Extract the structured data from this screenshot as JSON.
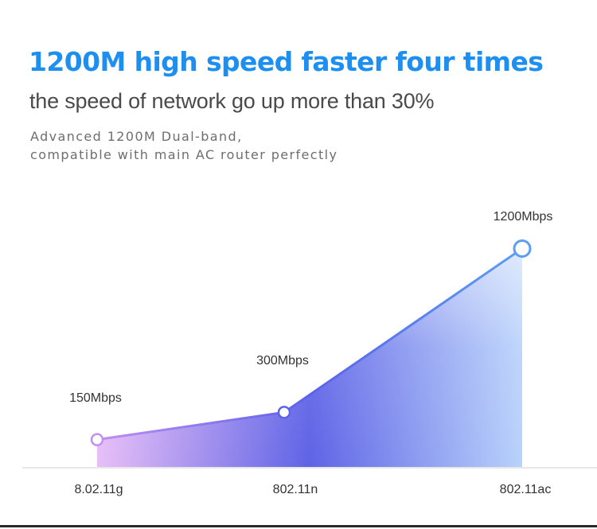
{
  "header": {
    "headline": "1200M high speed  faster four times",
    "subheadline": "the speed of network go up more than  30%",
    "description_line1": "Advanced 1200M Dual-band,",
    "description_line2": "compatible with main AC router perfectly"
  },
  "colors": {
    "headline": "#1d8ff0",
    "line_start": "#c18ff2",
    "line_mid": "#5a63ea",
    "line_end": "#5b9ef2",
    "area_start": "#e8bff7",
    "area_mid": "#5e63e6",
    "area_end": "#b9d2fb",
    "axis": "#cfcfcf"
  },
  "chart_data": {
    "type": "area",
    "title": "",
    "xlabel": "",
    "ylabel": "",
    "categories": [
      "8.02.11g",
      "802.11n",
      "802.11ac"
    ],
    "series": [
      {
        "values": [
          150,
          300,
          1200
        ],
        "data_labels": [
          "150Mbps",
          "300Mbps",
          "1200Mbps"
        ]
      }
    ],
    "ylim": [
      0,
      1320
    ],
    "grid": false,
    "legend": "none"
  }
}
